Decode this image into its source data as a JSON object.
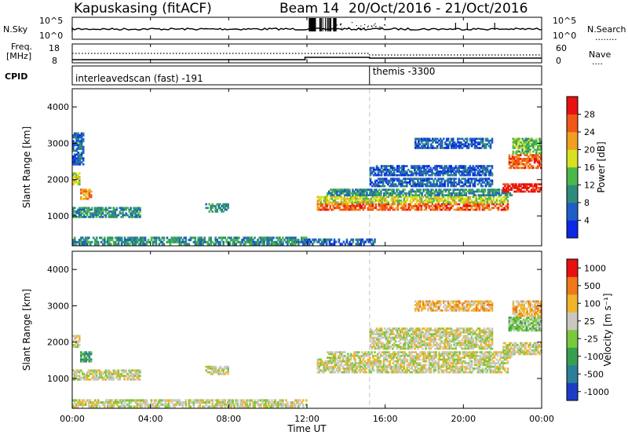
{
  "header": {
    "station": "Kapuskasing (fitACF)",
    "beam": "Beam 14",
    "date_range": "20/Oct/2016 - 21/Oct/2016"
  },
  "sky_panel": {
    "left_label": "N.Sky",
    "left_top_tick": "10^5",
    "left_bottom_tick": "10^0",
    "right_top_tick": "10^5",
    "right_bottom_tick": "10^0",
    "right_label": "N.Search",
    "right_label_dots": "........"
  },
  "freq_panel": {
    "left_label_1": "Freq.",
    "left_label_2": "[MHz]",
    "left_top_tick": "18",
    "left_bottom_tick": "8",
    "right_top_tick": "60",
    "right_bottom_tick": "0",
    "right_label": "Nave",
    "right_label_dots": "...."
  },
  "cpid_panel": {
    "label": "CPID",
    "left_text": "interleavedscan (fast) -191",
    "right_text": "themis -3300",
    "switch_time_hours": 15.2
  },
  "x_axis": {
    "label": "Time UT",
    "ticks": [
      "00:00",
      "04:00",
      "08:00",
      "12:00",
      "16:00",
      "20:00",
      "00:00"
    ],
    "tick_hours": [
      0,
      4,
      8,
      12,
      16,
      20,
      24
    ]
  },
  "chart_data": [
    {
      "type": "heatmap",
      "panel": "power",
      "ylabel": "Slant Range [km]",
      "yticks": [
        "1000",
        "2000",
        "3000",
        "4000"
      ],
      "ytick_values": [
        1000,
        2000,
        3000,
        4000
      ],
      "ylim": [
        180,
        4500
      ],
      "xlim_hours": [
        0,
        24
      ],
      "colorbar": {
        "label": "Power [dB]",
        "ticks": [
          "4",
          "8",
          "12",
          "16",
          "20",
          "24",
          "28"
        ],
        "colors": [
          "#0a28e6",
          "#1f5ec8",
          "#2f8c7a",
          "#4bb84a",
          "#d8e020",
          "#f0a020",
          "#f05818",
          "#e81010"
        ]
      },
      "regions": [
        {
          "t0": 0.0,
          "t1": 12.0,
          "r0": 200,
          "r1": 430,
          "level": 2
        },
        {
          "t0": 12.0,
          "t1": 15.5,
          "r0": 200,
          "r1": 380,
          "level": 1
        },
        {
          "t0": 0.0,
          "t1": 0.4,
          "r0": 1850,
          "r1": 2200,
          "level": 4
        },
        {
          "t0": 0.4,
          "t1": 1.0,
          "r0": 1450,
          "r1": 1750,
          "level": 5
        },
        {
          "t0": 0.0,
          "t1": 3.5,
          "r0": 950,
          "r1": 1250,
          "level": 2
        },
        {
          "t0": 6.8,
          "t1": 8.0,
          "r0": 1100,
          "r1": 1350,
          "level": 2
        },
        {
          "t0": 0.0,
          "t1": 0.6,
          "r0": 2400,
          "r1": 3300,
          "level": 1
        },
        {
          "t0": 12.5,
          "t1": 22.3,
          "r0": 1150,
          "r1": 1350,
          "level": 6
        },
        {
          "t0": 12.5,
          "t1": 22.3,
          "r0": 1350,
          "r1": 1550,
          "level": 4
        },
        {
          "t0": 13.0,
          "t1": 22.5,
          "r0": 1550,
          "r1": 1750,
          "level": 2
        },
        {
          "t0": 15.2,
          "t1": 21.5,
          "r0": 1800,
          "r1": 2050,
          "level": 1
        },
        {
          "t0": 15.2,
          "t1": 21.5,
          "r0": 2100,
          "r1": 2400,
          "level": 1
        },
        {
          "t0": 17.5,
          "t1": 21.5,
          "r0": 2850,
          "r1": 3150,
          "level": 1
        },
        {
          "t0": 22.0,
          "t1": 24.0,
          "r0": 1650,
          "r1": 1900,
          "level": 7
        },
        {
          "t0": 22.3,
          "t1": 24.0,
          "r0": 2300,
          "r1": 2700,
          "level": 6
        },
        {
          "t0": 22.5,
          "t1": 24.0,
          "r0": 2700,
          "r1": 3150,
          "level": 3
        }
      ]
    },
    {
      "type": "heatmap",
      "panel": "velocity",
      "ylabel": "Slant Range [km]",
      "yticks": [
        "1000",
        "2000",
        "3000",
        "4000"
      ],
      "ytick_values": [
        1000,
        2000,
        3000,
        4000
      ],
      "ylim": [
        180,
        4500
      ],
      "xlim_hours": [
        0,
        24
      ],
      "colorbar": {
        "label": "Velocity [m s⁻¹]",
        "ticks": [
          "1000",
          "500",
          "100",
          "25",
          "-25",
          "-100",
          "-500",
          "-1000"
        ],
        "colors": [
          "#1c3cc8",
          "#2a8098",
          "#36a050",
          "#7ac83c",
          "#c8c8c0",
          "#f0b428",
          "#f07818",
          "#e81010"
        ]
      },
      "regions": [
        {
          "t0": 0.0,
          "t1": 12.0,
          "r0": 200,
          "r1": 430,
          "level": 4
        },
        {
          "t0": 0.0,
          "t1": 0.4,
          "r0": 1850,
          "r1": 2200,
          "level": 4
        },
        {
          "t0": 0.4,
          "t1": 1.0,
          "r0": 1450,
          "r1": 1750,
          "level": 2
        },
        {
          "t0": 0.0,
          "t1": 3.5,
          "r0": 950,
          "r1": 1250,
          "level": 4
        },
        {
          "t0": 6.8,
          "t1": 8.0,
          "r0": 1100,
          "r1": 1350,
          "level": 4
        },
        {
          "t0": 12.5,
          "t1": 22.3,
          "r0": 1150,
          "r1": 1550,
          "level": 4
        },
        {
          "t0": 13.0,
          "t1": 22.5,
          "r0": 1550,
          "r1": 1750,
          "level": 4
        },
        {
          "t0": 15.2,
          "t1": 21.5,
          "r0": 1800,
          "r1": 2400,
          "level": 4
        },
        {
          "t0": 17.5,
          "t1": 21.5,
          "r0": 2850,
          "r1": 3150,
          "level": 5
        },
        {
          "t0": 22.0,
          "t1": 24.0,
          "r0": 1650,
          "r1": 2000,
          "level": 4
        },
        {
          "t0": 22.3,
          "t1": 24.0,
          "r0": 2300,
          "r1": 2700,
          "level": 3
        },
        {
          "t0": 22.5,
          "t1": 24.0,
          "r0": 2700,
          "r1": 3150,
          "level": 5
        }
      ]
    }
  ]
}
